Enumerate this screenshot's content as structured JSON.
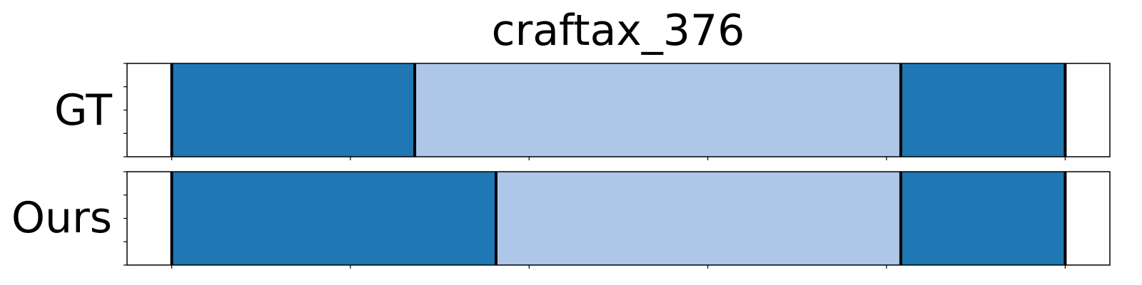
{
  "chart_data": {
    "type": "segmentation-timeline",
    "title": "craftax_376",
    "x_range": [
      -50,
      1050
    ],
    "x_ticks": [
      0,
      200,
      400,
      600,
      800,
      1000
    ],
    "rows": [
      {
        "label": "GT",
        "segments": [
          {
            "start": 0,
            "end": 272,
            "color": "#1f77b4"
          },
          {
            "start": 272,
            "end": 816,
            "color": "#aec7e8"
          },
          {
            "start": 816,
            "end": 1000,
            "color": "#1f77b4"
          }
        ]
      },
      {
        "label": "Ours",
        "segments": [
          {
            "start": 0,
            "end": 363,
            "color": "#1f77b4"
          },
          {
            "start": 363,
            "end": 816,
            "color": "#aec7e8"
          },
          {
            "start": 816,
            "end": 1000,
            "color": "#1f77b4"
          }
        ]
      }
    ]
  }
}
